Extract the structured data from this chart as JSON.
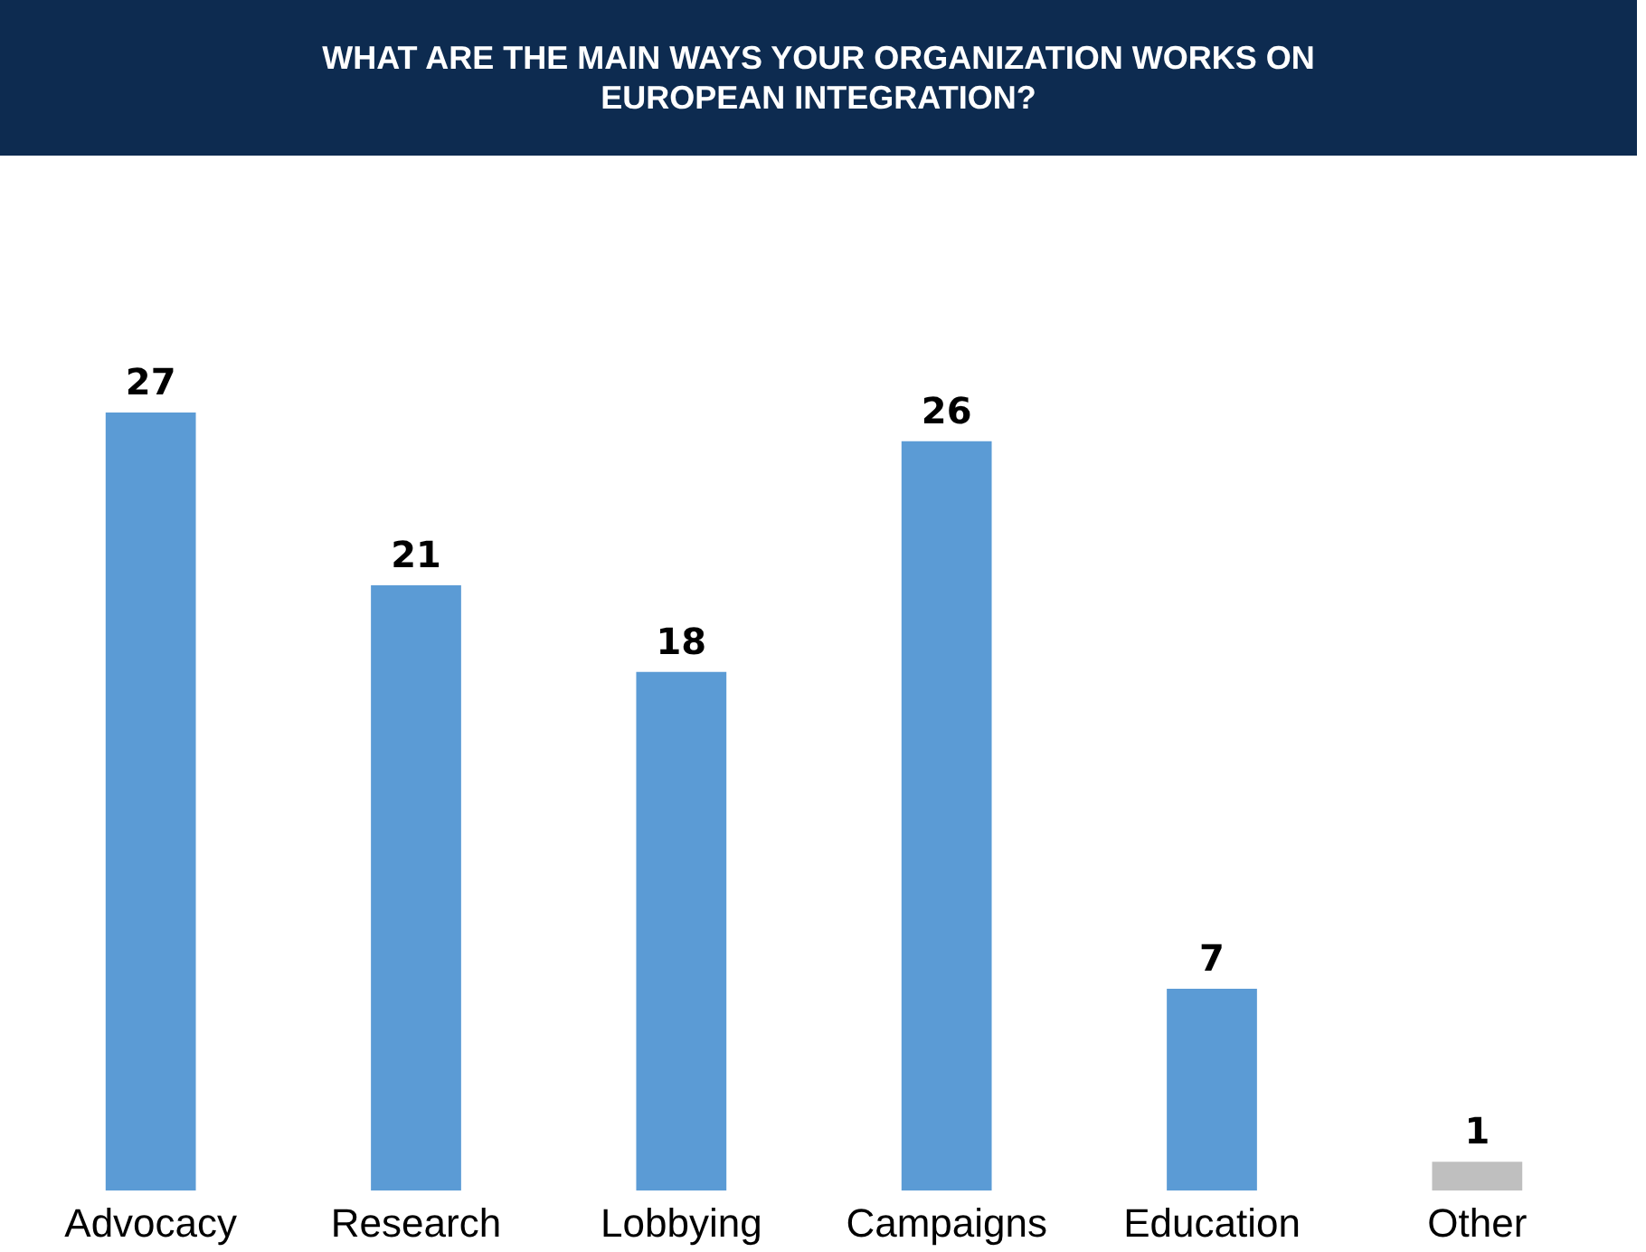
{
  "chart_data": {
    "type": "bar",
    "title": "WHAT ARE THE MAIN WAYS YOUR ORGANIZATION WORKS ON EUROPEAN INTEGRATION?",
    "categories": [
      "Advocacy",
      "Research",
      "Lobbying",
      "Campaigns",
      "Education",
      "Other"
    ],
    "values": [
      27,
      21,
      18,
      26,
      7,
      1
    ],
    "colors": [
      "#5b9bd5",
      "#5b9bd5",
      "#5b9bd5",
      "#5b9bd5",
      "#5b9bd5",
      "#bfbfbf"
    ],
    "data_labels": true
  }
}
